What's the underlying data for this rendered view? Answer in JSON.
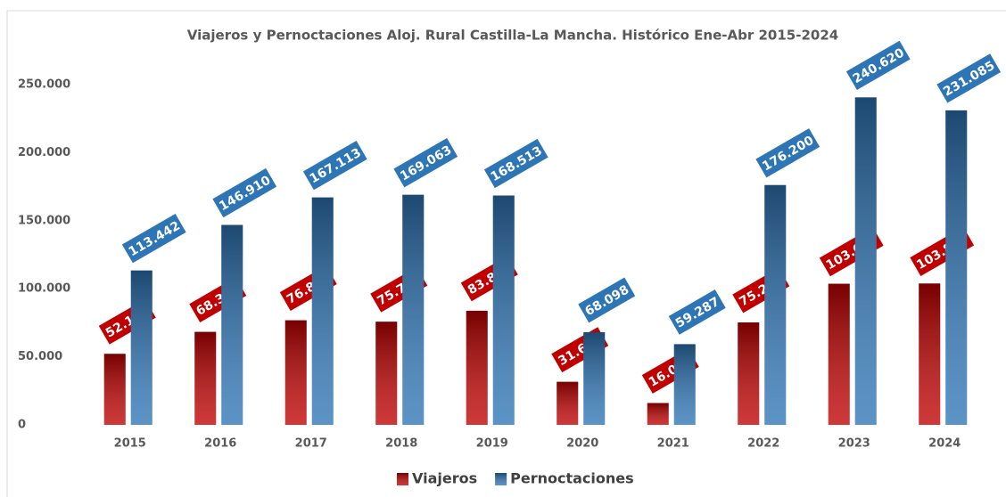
{
  "chart_data": {
    "type": "bar",
    "title": "Viajeros y Pernoctaciones Aloj. Rural Castilla-La Mancha. Histórico Ene-Abr 2015-2024",
    "categories": [
      "2015",
      "2016",
      "2017",
      "2018",
      "2019",
      "2020",
      "2021",
      "2022",
      "2023",
      "2024"
    ],
    "series": [
      {
        "name": "Viajeros",
        "color": "#c00000",
        "values": [
          52180,
          68323,
          76849,
          75794,
          83826,
          31627,
          16036,
          75269,
          103677,
          103859
        ],
        "value_labels": [
          "52.180",
          "68.323",
          "76.849",
          "75.794",
          "83.826",
          "31.627",
          "16.036",
          "75.269",
          "103.677",
          "103.859"
        ]
      },
      {
        "name": "Pernoctaciones",
        "color": "#2e75b6",
        "values": [
          113442,
          146910,
          167113,
          169063,
          168513,
          68098,
          59287,
          176200,
          240620,
          231085
        ],
        "value_labels": [
          "113.442",
          "146.910",
          "167.113",
          "169.063",
          "168.513",
          "68.098",
          "59.287",
          "176.200",
          "240.620",
          "231.085"
        ]
      }
    ],
    "ylim": [
      0,
      250000
    ],
    "yticks": [
      {
        "value": 0,
        "label": "0"
      },
      {
        "value": 50000,
        "label": "50.000"
      },
      {
        "value": 100000,
        "label": "100.000"
      },
      {
        "value": 150000,
        "label": "150.000"
      },
      {
        "value": 200000,
        "label": "200.000"
      },
      {
        "value": 250000,
        "label": "250.000"
      }
    ],
    "grid": false,
    "legend": "bottom"
  }
}
